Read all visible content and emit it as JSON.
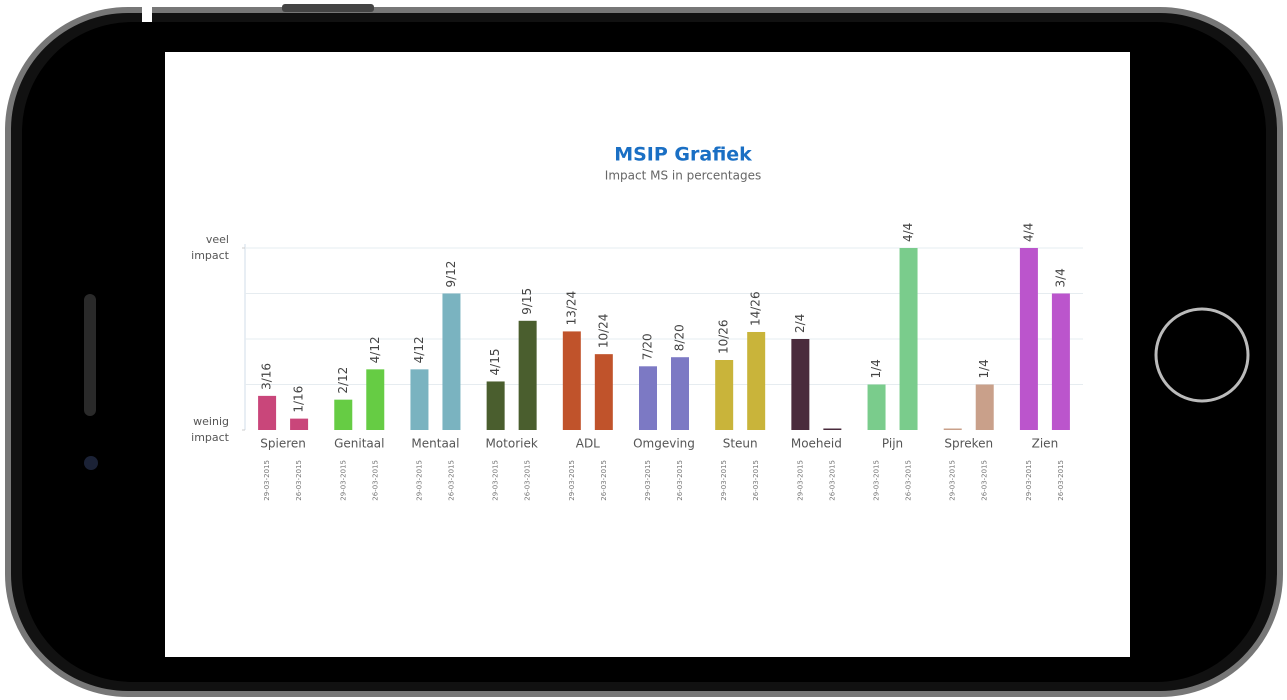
{
  "chart_data": {
    "type": "bar",
    "title": "MSIP Grafiek",
    "subtitle": "Impact MS in percentages",
    "categories": [
      "Spieren",
      "Genitaal",
      "Mentaal",
      "Motoriek",
      "ADL",
      "Omgeving",
      "Steun",
      "Moeheid",
      "Pijn",
      "Spreken",
      "Zien"
    ],
    "colors": [
      "#c9467a",
      "#66cc44",
      "#7ab3c0",
      "#4a5e2e",
      "#c0532b",
      "#7c79c4",
      "#c9b43a",
      "#4a2b3c",
      "#7acc8c",
      "#c9a08a",
      "#bb55cc"
    ],
    "series": [
      {
        "name": "29-03-2015",
        "values": [
          18.75,
          16.67,
          33.33,
          26.67,
          54.17,
          35,
          38.46,
          50,
          25,
          0,
          100
        ],
        "value_labels": [
          "3/16",
          "2/12",
          "4/12",
          "4/15",
          "13/24",
          "7/20",
          "10/26",
          "2/4",
          "1/4",
          null,
          "4/4"
        ]
      },
      {
        "name": "26-03-2015",
        "values": [
          6.25,
          33.33,
          75,
          60,
          41.67,
          40,
          53.85,
          0,
          100,
          25,
          75
        ],
        "value_labels": [
          "1/16",
          "4/12",
          "9/12",
          "9/15",
          "10/24",
          "8/20",
          "14/26",
          null,
          "4/4",
          "1/4",
          "3/4"
        ]
      }
    ],
    "ylim": [
      0,
      100
    ],
    "yticks": [
      {
        "value": 0,
        "label": "weinig impact"
      },
      {
        "value": 100,
        "label": "veel impact"
      }
    ],
    "gridlines": [
      25,
      50,
      75,
      100
    ],
    "grid": true
  }
}
